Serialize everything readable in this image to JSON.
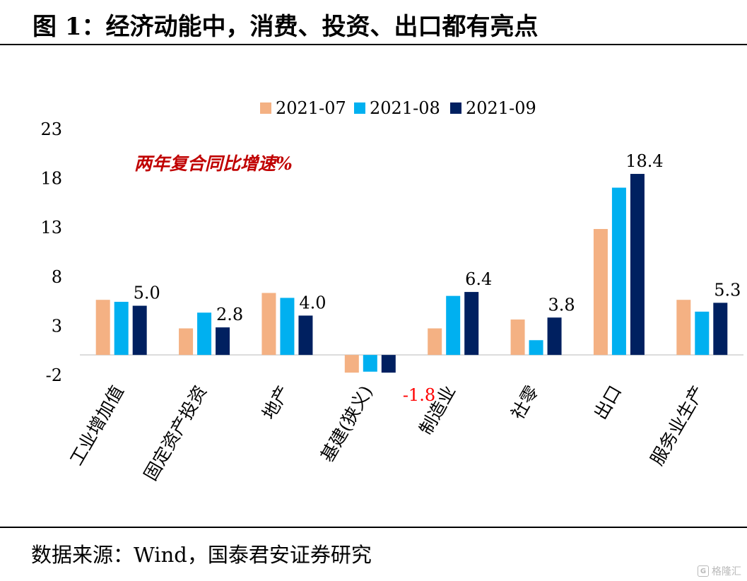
{
  "figure": {
    "title": "图 1：经济动能中，消费、投资、出口都有亮点",
    "source": "数据来源：Wind，国泰君安证券研究"
  },
  "watermark": {
    "text": "格隆汇",
    "icon": "brand-logo-icon"
  },
  "chart_data": {
    "type": "bar",
    "title": "",
    "annotation": "两年复合同比增速%",
    "annotation_color": "#c00000",
    "categories": [
      "工业增加值",
      "固定资产投资",
      "地产",
      "基建(狭义)",
      "制造业",
      "社零",
      "出口",
      "服务业生产"
    ],
    "series": [
      {
        "name": "2021-07",
        "color": "#f4b183",
        "values": [
          5.6,
          2.7,
          6.3,
          -1.8,
          2.7,
          3.6,
          12.8,
          5.6
        ]
      },
      {
        "name": "2021-08",
        "color": "#00b0f0",
        "values": [
          5.4,
          4.3,
          5.8,
          -1.7,
          6.0,
          1.5,
          17.0,
          4.4
        ]
      },
      {
        "name": "2021-09",
        "color": "#002060",
        "values": [
          5.0,
          2.8,
          4.0,
          -1.8,
          6.4,
          3.8,
          18.4,
          5.3
        ]
      }
    ],
    "data_labels": [
      {
        "category": "工业增加值",
        "series": "2021-09",
        "text": "5.0"
      },
      {
        "category": "固定资产投资",
        "series": "2021-09",
        "text": "2.8"
      },
      {
        "category": "地产",
        "series": "2021-09",
        "text": "4.0"
      },
      {
        "category": "基建(狭义)",
        "series": "2021-09",
        "text": "-1.8",
        "color": "#ff0000"
      },
      {
        "category": "制造业",
        "series": "2021-09",
        "text": "6.4"
      },
      {
        "category": "社零",
        "series": "2021-09",
        "text": "3.8"
      },
      {
        "category": "出口",
        "series": "2021-09",
        "text": "18.4"
      },
      {
        "category": "服务业生产",
        "series": "2021-09",
        "text": "5.3"
      }
    ],
    "yticks": [
      "23",
      "18",
      "13",
      "8",
      "3",
      "-2"
    ],
    "ylim": [
      -2,
      23
    ],
    "xlabel": "",
    "ylabel": "",
    "legend": "top-center",
    "grid": false
  }
}
